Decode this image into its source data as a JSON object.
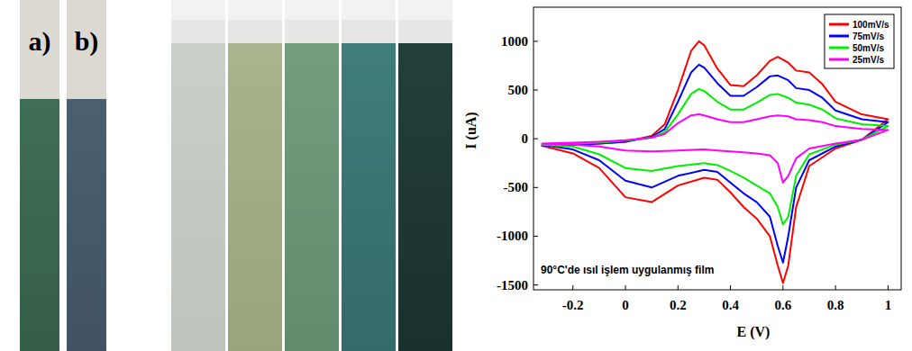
{
  "photo_labels": [
    "a)",
    "b)"
  ],
  "chart_data": {
    "type": "line",
    "x_label": "E (V)",
    "y_label": "I (uA)",
    "annotation": "90°C'de ısıl işlem uygulanmış film",
    "legend": "upper right",
    "grid": false,
    "xlim": [
      -0.35,
      1.05
    ],
    "ylim": [
      -1550,
      1350
    ],
    "xticks": [
      -0.2,
      0,
      0.2,
      0.4,
      0.6,
      0.8,
      1
    ],
    "yticks": [
      -1500,
      -1000,
      -500,
      0,
      500,
      1000
    ],
    "x": [
      -0.32,
      -0.2,
      -0.1,
      0,
      0.1,
      0.15,
      0.2,
      0.25,
      0.28,
      0.3,
      0.35,
      0.4,
      0.45,
      0.5,
      0.55,
      0.58,
      0.62,
      0.65,
      0.7,
      0.75,
      0.8,
      0.9,
      1.0,
      0.9,
      0.8,
      0.7,
      0.65,
      0.62,
      0.6,
      0.58,
      0.55,
      0.5,
      0.45,
      0.4,
      0.35,
      0.3,
      0.2,
      0.1,
      0,
      -0.1,
      -0.2,
      -0.32
    ],
    "series": [
      {
        "name": "100mV/s",
        "color": "#ff0000",
        "values": [
          -70,
          -60,
          -50,
          -30,
          30,
          150,
          500,
          900,
          1000,
          960,
          720,
          550,
          540,
          650,
          800,
          840,
          780,
          700,
          680,
          560,
          380,
          250,
          200,
          -10,
          -100,
          -280,
          -700,
          -1300,
          -1480,
          -1300,
          -1000,
          -820,
          -700,
          -550,
          -420,
          -400,
          -480,
          -650,
          -600,
          -300,
          -150,
          -70
        ]
      },
      {
        "name": "75mV/s",
        "color": "#0000ff",
        "values": [
          -70,
          -60,
          -50,
          -30,
          20,
          100,
          380,
          680,
          760,
          730,
          570,
          440,
          440,
          530,
          640,
          650,
          600,
          520,
          500,
          420,
          290,
          200,
          170,
          -10,
          -80,
          -220,
          -500,
          -1000,
          -1270,
          -1100,
          -800,
          -650,
          -560,
          -450,
          -340,
          -320,
          -380,
          -500,
          -430,
          -220,
          -110,
          -60
        ]
      },
      {
        "name": "50mV/s",
        "color": "#00ee00",
        "values": [
          -60,
          -50,
          -40,
          -20,
          10,
          70,
          250,
          460,
          510,
          490,
          380,
          300,
          300,
          370,
          450,
          460,
          420,
          370,
          350,
          300,
          210,
          150,
          130,
          -10,
          -60,
          -160,
          -380,
          -800,
          -880,
          -700,
          -560,
          -480,
          -400,
          -330,
          -270,
          -250,
          -280,
          -330,
          -300,
          -160,
          -80,
          -60
        ]
      },
      {
        "name": "25mV/s",
        "color": "#ff00ff",
        "values": [
          -50,
          -40,
          -30,
          -15,
          10,
          50,
          160,
          240,
          250,
          240,
          200,
          170,
          170,
          200,
          230,
          240,
          230,
          200,
          190,
          170,
          130,
          100,
          90,
          -10,
          -50,
          -100,
          -200,
          -380,
          -450,
          -250,
          -170,
          -150,
          -140,
          -130,
          -120,
          -110,
          -120,
          -130,
          -120,
          -80,
          -60,
          -50
        ]
      }
    ]
  }
}
